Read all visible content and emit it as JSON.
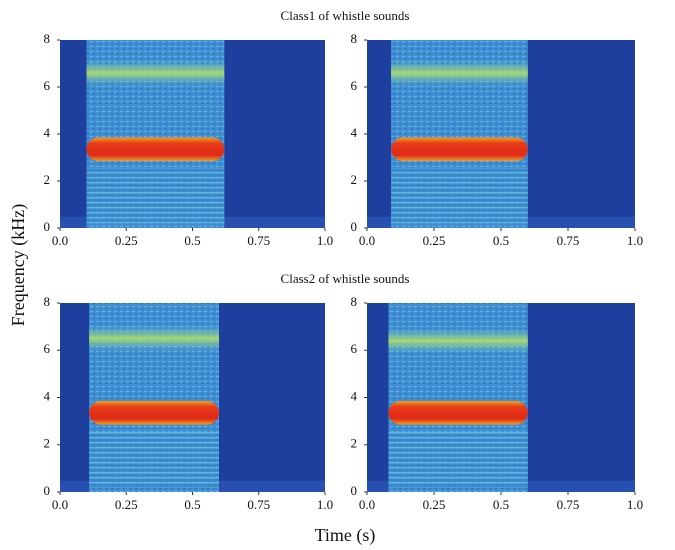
{
  "figure": {
    "ylabel": "Frequency (kHz)",
    "xlabel": "Time (s)"
  },
  "chart_data": [
    {
      "type": "spectrogram",
      "title": "Class1 of whistle sounds",
      "onset": 0.1,
      "offset": 0.62,
      "tone": 3.35,
      "harmonic": 6.6,
      "xlim": [
        0,
        1
      ],
      "xticks": [
        {
          "value": 0,
          "label": "0.0"
        },
        0.25,
        0.5,
        0.75,
        {
          "value": 1,
          "label": "1.0"
        }
      ],
      "ylim": [
        0,
        8
      ],
      "yticks": [
        0,
        2,
        4,
        6,
        8
      ]
    },
    {
      "type": "spectrogram",
      "onset": 0.09,
      "offset": 0.6,
      "tone": 3.35,
      "harmonic": 6.6,
      "xlim": [
        0,
        1
      ],
      "xticks": [
        {
          "value": 0,
          "label": "0.0"
        },
        0.25,
        0.5,
        0.75,
        {
          "value": 1,
          "label": "1.0"
        }
      ],
      "ylim": [
        0,
        8
      ],
      "yticks": [
        0,
        2,
        4,
        6,
        8
      ]
    },
    {
      "type": "spectrogram",
      "title": "Class2 of whistle sounds",
      "onset": 0.11,
      "offset": 0.6,
      "tone": 3.35,
      "harmonic": 6.5,
      "xlim": [
        0,
        1
      ],
      "xticks": [
        {
          "value": 0,
          "label": "0.0"
        },
        0.25,
        0.5,
        0.75,
        {
          "value": 1,
          "label": "1.0"
        }
      ],
      "ylim": [
        0,
        8
      ],
      "yticks": [
        0,
        2,
        4,
        6,
        8
      ]
    },
    {
      "type": "spectrogram",
      "onset": 0.08,
      "offset": 0.6,
      "tone": 3.35,
      "harmonic": 6.4,
      "xlim": [
        0,
        1
      ],
      "xticks": [
        {
          "value": 0,
          "label": "0.0"
        },
        0.25,
        0.5,
        0.75,
        {
          "value": 1,
          "label": "1.0"
        }
      ],
      "ylim": [
        0,
        8
      ],
      "yticks": [
        0,
        2,
        4,
        6,
        8
      ]
    }
  ]
}
